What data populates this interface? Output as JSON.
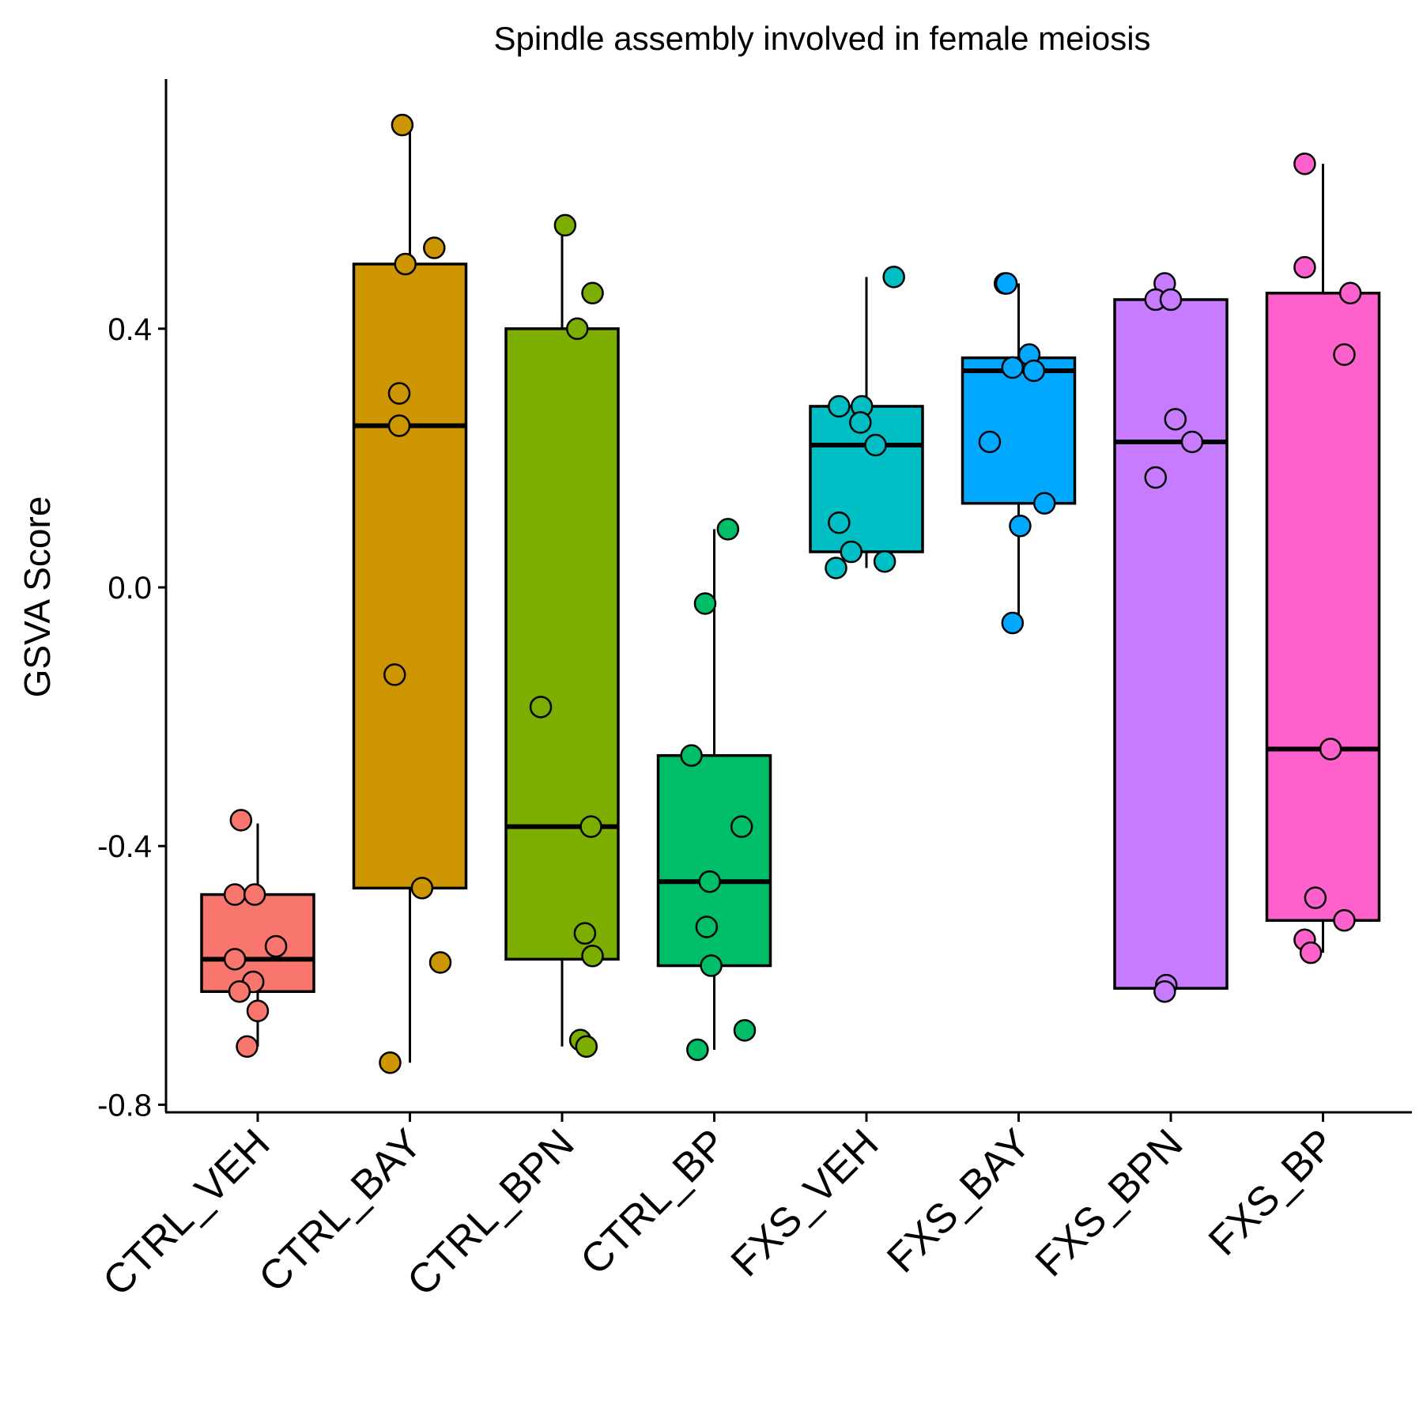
{
  "chart_data": {
    "type": "boxplot",
    "title": "Spindle assembly involved in female meiosis",
    "xlabel": "",
    "ylabel": "GSVA Score",
    "ylim": [
      -0.8,
      0.78
    ],
    "yticks": [
      -0.8,
      -0.4,
      0.0,
      0.4
    ],
    "ytick_labels": [
      "-0.8",
      "-0.4",
      "0.0",
      "0.4"
    ],
    "categories": [
      "CTRL_VEH",
      "CTRL_BAY",
      "CTRL_BPN",
      "CTRL_BP",
      "FXS_VEH",
      "FXS_BAY",
      "FXS_BPN",
      "FXS_BP"
    ],
    "colors": [
      "#F8766D",
      "#CD9600",
      "#7CAE00",
      "#00BE67",
      "#00BFC4",
      "#00A9FF",
      "#C77CFF",
      "#FF61CC"
    ],
    "boxes": [
      {
        "name": "CTRL_VEH",
        "whisker_low": -0.71,
        "q1": -0.625,
        "median": -0.575,
        "q3": -0.475,
        "whisker_high": -0.365
      },
      {
        "name": "CTRL_BAY",
        "whisker_low": -0.735,
        "q1": -0.465,
        "median": 0.25,
        "q3": 0.5,
        "whisker_high": 0.715
      },
      {
        "name": "CTRL_BPN",
        "whisker_low": -0.71,
        "q1": -0.575,
        "median": -0.37,
        "q3": 0.4,
        "whisker_high": 0.56
      },
      {
        "name": "CTRL_BP",
        "whisker_low": -0.715,
        "q1": -0.585,
        "median": -0.455,
        "q3": -0.26,
        "whisker_high": 0.09
      },
      {
        "name": "FXS_VEH",
        "whisker_low": 0.03,
        "q1": 0.055,
        "median": 0.22,
        "q3": 0.28,
        "whisker_high": 0.48
      },
      {
        "name": "FXS_BAY",
        "whisker_low": -0.055,
        "q1": 0.13,
        "median": 0.335,
        "q3": 0.355,
        "whisker_high": 0.47
      },
      {
        "name": "FXS_BPN",
        "whisker_low": -0.62,
        "q1": -0.62,
        "median": 0.225,
        "q3": 0.445,
        "whisker_high": 0.47
      },
      {
        "name": "FXS_BP",
        "whisker_low": -0.565,
        "q1": -0.515,
        "median": -0.25,
        "q3": 0.455,
        "whisker_high": 0.655
      }
    ],
    "points": [
      [
        [
          -0.11,
          -0.36
        ],
        [
          -0.15,
          -0.475
        ],
        [
          -0.02,
          -0.475
        ],
        [
          -0.15,
          -0.575
        ],
        [
          0.12,
          -0.555
        ],
        [
          -0.03,
          -0.61
        ],
        [
          -0.12,
          -0.625
        ],
        [
          0.0,
          -0.655
        ],
        [
          -0.07,
          -0.71
        ]
      ],
      [
        [
          -0.05,
          0.715
        ],
        [
          0.16,
          0.525
        ],
        [
          -0.03,
          0.5
        ],
        [
          -0.07,
          0.3
        ],
        [
          -0.07,
          0.25
        ],
        [
          -0.1,
          -0.135
        ],
        [
          0.08,
          -0.465
        ],
        [
          0.2,
          -0.58
        ],
        [
          -0.13,
          -0.735
        ]
      ],
      [
        [
          0.02,
          0.56
        ],
        [
          0.2,
          0.455
        ],
        [
          0.1,
          0.4
        ],
        [
          -0.14,
          -0.185
        ],
        [
          0.19,
          -0.37
        ],
        [
          0.15,
          -0.535
        ],
        [
          0.2,
          -0.57
        ],
        [
          0.12,
          -0.7
        ],
        [
          0.16,
          -0.71
        ]
      ],
      [
        [
          0.09,
          0.09
        ],
        [
          -0.06,
          -0.025
        ],
        [
          -0.15,
          -0.26
        ],
        [
          0.18,
          -0.37
        ],
        [
          -0.03,
          -0.455
        ],
        [
          -0.05,
          -0.525
        ],
        [
          -0.02,
          -0.585
        ],
        [
          0.2,
          -0.685
        ],
        [
          -0.11,
          -0.715
        ]
      ],
      [
        [
          0.18,
          0.48
        ],
        [
          -0.18,
          0.28
        ],
        [
          -0.03,
          0.28
        ],
        [
          -0.04,
          0.255
        ],
        [
          0.06,
          0.22
        ],
        [
          -0.18,
          0.1
        ],
        [
          -0.1,
          0.055
        ],
        [
          0.12,
          0.04
        ],
        [
          -0.2,
          0.03
        ]
      ],
      [
        [
          -0.09,
          0.47
        ],
        [
          -0.08,
          0.47
        ],
        [
          0.07,
          0.36
        ],
        [
          -0.04,
          0.34
        ],
        [
          0.1,
          0.335
        ],
        [
          -0.19,
          0.225
        ],
        [
          0.17,
          0.13
        ],
        [
          0.01,
          0.095
        ],
        [
          -0.04,
          -0.055
        ]
      ],
      [
        [
          -0.04,
          0.47
        ],
        [
          -0.1,
          0.445
        ],
        [
          0.0,
          0.445
        ],
        [
          0.03,
          0.26
        ],
        [
          0.14,
          0.225
        ],
        [
          -0.1,
          0.17
        ],
        [
          -0.03,
          -0.615
        ],
        [
          -0.04,
          -0.625
        ]
      ],
      [
        [
          -0.12,
          0.655
        ],
        [
          -0.12,
          0.495
        ],
        [
          0.18,
          0.455
        ],
        [
          0.14,
          0.36
        ],
        [
          0.05,
          -0.25
        ],
        [
          -0.05,
          -0.48
        ],
        [
          0.14,
          -0.515
        ],
        [
          -0.12,
          -0.545
        ],
        [
          -0.08,
          -0.565
        ]
      ]
    ]
  }
}
